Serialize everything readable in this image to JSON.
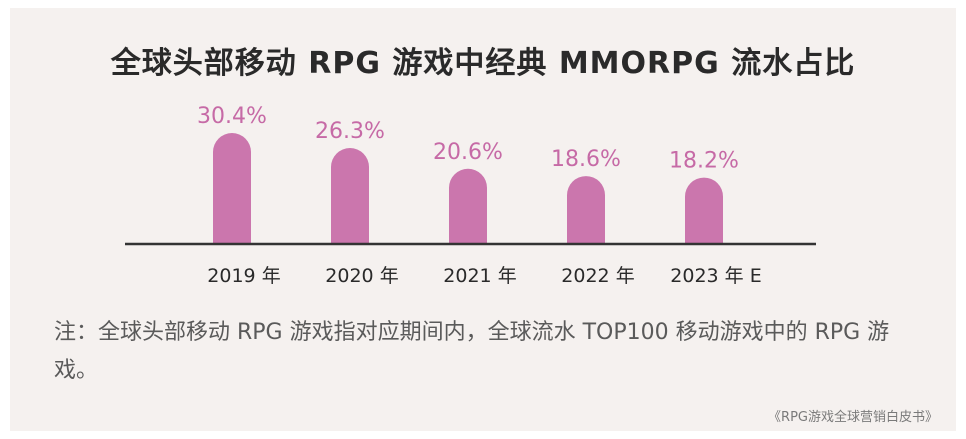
{
  "title": "全球头部移动 RPG 游戏中经典 MMORPG 流水占比",
  "note": "注：全球头部移动 RPG 游戏指对应期间内，全球流水 TOP100 移动游戏中的 RPG 游戏。",
  "source": "《RPG游戏全球营销白皮书》",
  "colors": {
    "bar": "#cb76ad",
    "label": "#c66aa6",
    "axis": "#333333",
    "background": "#f5f1ef"
  },
  "chart_data": {
    "type": "bar",
    "categories": [
      "2019 年",
      "2020 年",
      "2021 年",
      "2022 年",
      "2023 年 E"
    ],
    "values": [
      30.4,
      26.3,
      20.6,
      18.6,
      18.2
    ],
    "data_labels": [
      "30.4%",
      "26.3%",
      "20.6%",
      "18.6%",
      "18.2%"
    ],
    "ylim": [
      0,
      40
    ],
    "grid": false,
    "legend": "none"
  }
}
